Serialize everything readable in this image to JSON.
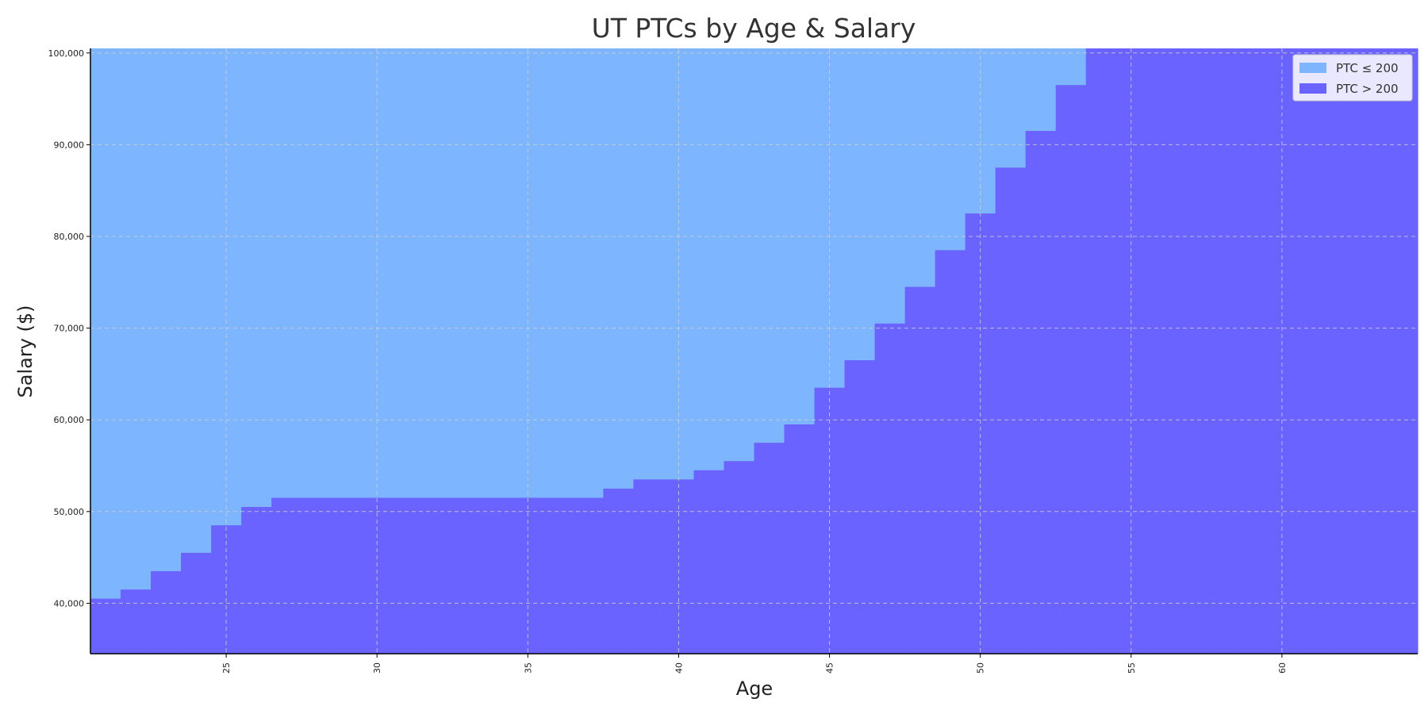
{
  "chart_data": {
    "type": "area",
    "title": "UT PTCs by Age & Salary",
    "xlabel": "Age",
    "ylabel": "Salary ($)",
    "xlim": [
      20.5,
      64.5
    ],
    "ylim": [
      34500,
      100500
    ],
    "x_ticks": [
      25,
      30,
      35,
      40,
      45,
      50,
      55,
      60
    ],
    "y_ticks": [
      40000,
      50000,
      60000,
      70000,
      80000,
      90000,
      100000
    ],
    "y_tick_labels": [
      "40,000",
      "50,000",
      "60,000",
      "70,000",
      "80,000",
      "90,000",
      "100,000"
    ],
    "x_tick_rotation": 90,
    "grid": true,
    "legend_position": "top-right",
    "series": [
      {
        "name": "PTC ≤ 200",
        "color": "#7eb5ff"
      },
      {
        "name": "PTC > 200",
        "color": "#6a63ff"
      }
    ],
    "boundary_ages": [
      21,
      22,
      23,
      24,
      25,
      26,
      27,
      28,
      29,
      30,
      31,
      32,
      33,
      34,
      35,
      36,
      37,
      38,
      39,
      40,
      41,
      42,
      43,
      44,
      45,
      46,
      47,
      48,
      49,
      50,
      51,
      52,
      53,
      54,
      55,
      56,
      57,
      58,
      59,
      60,
      61,
      62,
      63,
      64
    ],
    "boundary_salary": [
      40500,
      41500,
      43500,
      45500,
      48500,
      50500,
      51500,
      51500,
      51500,
      51500,
      51500,
      51500,
      51500,
      51500,
      51500,
      51500,
      51500,
      52500,
      53500,
      53500,
      54500,
      55500,
      57500,
      59500,
      63500,
      66500,
      70500,
      74500,
      78500,
      82500,
      87500,
      91500,
      96500,
      100500,
      100500,
      100500,
      100500,
      100500,
      100500,
      100500,
      100500,
      100500,
      100500,
      100500
    ]
  }
}
